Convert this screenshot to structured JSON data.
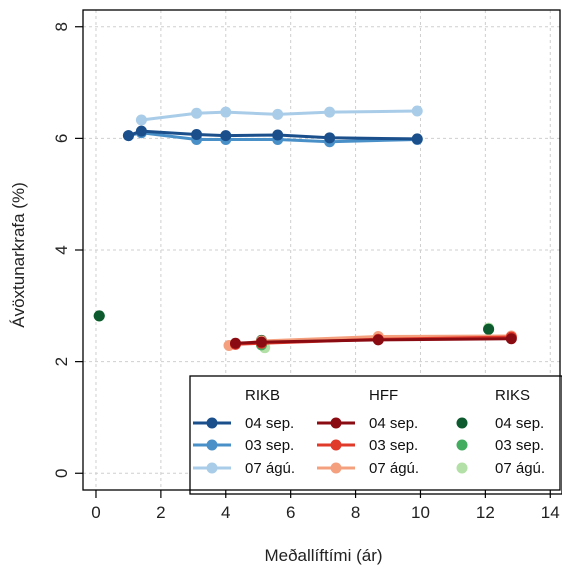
{
  "chart_data": {
    "type": "line",
    "xlabel": "Meðallíftími (ár)",
    "ylabel": "Ávöxtunarkrafa (%)",
    "xlim": [
      -0.4,
      14.3
    ],
    "ylim": [
      -0.3,
      8.3
    ],
    "xticks": [
      0,
      2,
      4,
      6,
      8,
      10,
      12,
      14
    ],
    "yticks": [
      0,
      2,
      4,
      6,
      8
    ],
    "grid": true,
    "legend_position": "bottom-right",
    "groups": [
      {
        "name": "RIKB",
        "series": [
          {
            "name": "04 sep.",
            "color": "#1a4f8c",
            "style": "line",
            "x": [
              1.0,
              1.4,
              3.1,
              4.0,
              5.6,
              7.2,
              9.9
            ],
            "y": [
              6.05,
              6.13,
              6.07,
              6.05,
              6.06,
              6.01,
              5.99
            ]
          },
          {
            "name": "03 sep.",
            "color": "#4a90c8",
            "style": "line",
            "x": [
              1.0,
              1.4,
              3.1,
              4.0,
              5.6,
              7.2,
              9.9
            ],
            "y": [
              6.05,
              6.1,
              5.98,
              5.98,
              5.98,
              5.94,
              5.98
            ]
          },
          {
            "name": "07 ágú.",
            "color": "#a9cce8",
            "style": "line",
            "x": [
              1.4,
              3.1,
              4.0,
              5.6,
              7.2,
              9.9
            ],
            "y": [
              6.33,
              6.45,
              6.47,
              6.43,
              6.47,
              6.49
            ]
          }
        ]
      },
      {
        "name": "HFF",
        "series": [
          {
            "name": "04 sep.",
            "color": "#8b0b12",
            "style": "line",
            "x": [
              4.3,
              5.1,
              8.7,
              12.8
            ],
            "y": [
              2.33,
              2.35,
              2.39,
              2.41
            ]
          },
          {
            "name": "03 sep.",
            "color": "#e03a2b",
            "style": "line",
            "x": [
              4.3,
              5.1,
              8.7,
              12.8
            ],
            "y": [
              2.31,
              2.33,
              2.4,
              2.44
            ]
          },
          {
            "name": "07 ágú.",
            "color": "#f4a07e",
            "style": "line",
            "x": [
              4.1,
              5.1,
              8.7,
              12.8
            ],
            "y": [
              2.29,
              2.37,
              2.45,
              2.46
            ]
          }
        ]
      },
      {
        "name": "RIKS",
        "series": [
          {
            "name": "04 sep.",
            "color": "#0c5a2e",
            "style": "points",
            "x": [
              0.1,
              5.1,
              12.1
            ],
            "y": [
              2.82,
              2.38,
              2.58
            ]
          },
          {
            "name": "03 sep.",
            "color": "#43ad5f",
            "style": "points",
            "x": [
              0.1,
              5.1,
              12.1
            ],
            "y": [
              2.82,
              2.3,
              2.58
            ]
          },
          {
            "name": "07 ágú.",
            "color": "#b3e0a6",
            "style": "points",
            "x": [
              0.1,
              5.2,
              12.1
            ],
            "y": [
              2.82,
              2.25,
              2.6
            ]
          }
        ]
      }
    ]
  }
}
